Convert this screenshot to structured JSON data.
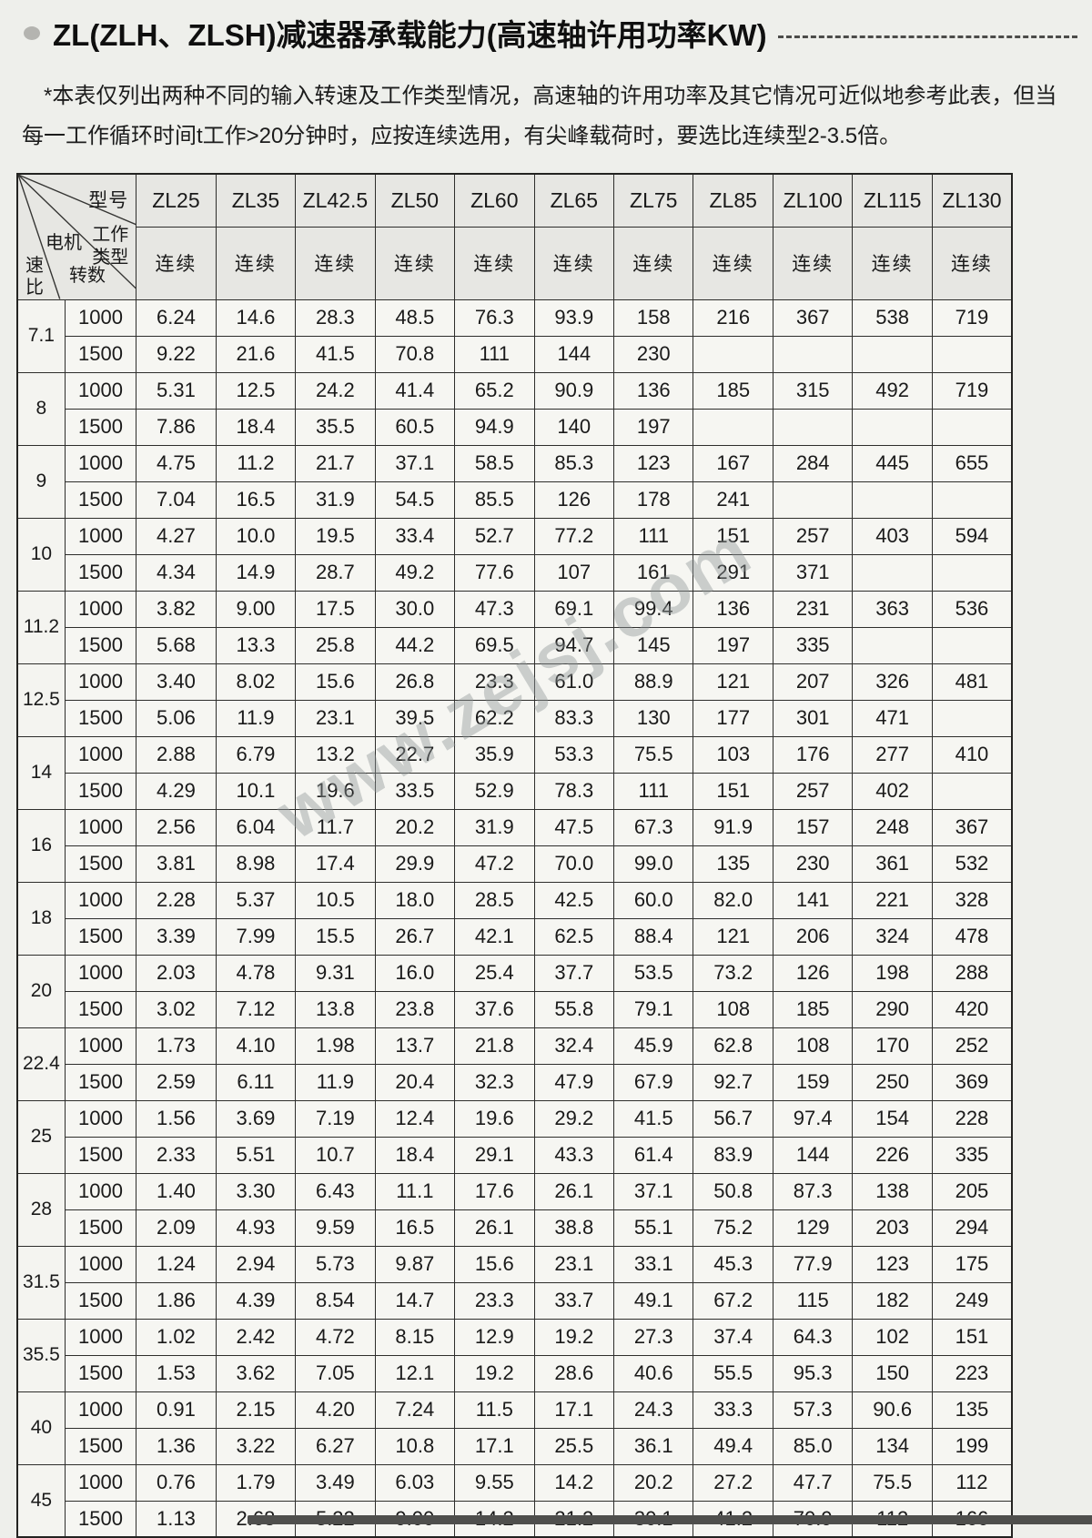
{
  "page": {
    "title": "ZL(ZLH、ZLSH)减速器承载能力(高速轴许用功率KW)",
    "note_line1": "*本表仅列出两种不同的输入转速及工作类型情况，高速轴的许用功率及其它情况可近似地参考此表，但当",
    "note_line2": "每一工作循环时间t工作>20分钟时，应按连续选用，有尖峰载荷时，要选比连续型2-3.5倍。",
    "watermark": "www.zejsj.com"
  },
  "table": {
    "corner": {
      "model_label": "型号",
      "work_type_label": "工作类型",
      "motor_label_1": "电机",
      "motor_label_2": "转数",
      "ratio_label": "速比"
    },
    "models": [
      "ZL25",
      "ZL35",
      "ZL42.5",
      "ZL50",
      "ZL60",
      "ZL65",
      "ZL75",
      "ZL85",
      "ZL100",
      "ZL115",
      "ZL130"
    ],
    "continuous_label": "连续",
    "row_groups": [
      {
        "ratio": "7.1",
        "rows": [
          {
            "rpm": "1000",
            "values": [
              "6.24",
              "14.6",
              "28.3",
              "48.5",
              "76.3",
              "93.9",
              "158",
              "216",
              "367",
              "538",
              "719"
            ]
          },
          {
            "rpm": "1500",
            "values": [
              "9.22",
              "21.6",
              "41.5",
              "70.8",
              "111",
              "144",
              "230",
              "",
              "",
              "",
              ""
            ]
          }
        ]
      },
      {
        "ratio": "8",
        "rows": [
          {
            "rpm": "1000",
            "values": [
              "5.31",
              "12.5",
              "24.2",
              "41.4",
              "65.2",
              "90.9",
              "136",
              "185",
              "315",
              "492",
              "719"
            ]
          },
          {
            "rpm": "1500",
            "values": [
              "7.86",
              "18.4",
              "35.5",
              "60.5",
              "94.9",
              "140",
              "197",
              "",
              "",
              "",
              ""
            ]
          }
        ]
      },
      {
        "ratio": "9",
        "rows": [
          {
            "rpm": "1000",
            "values": [
              "4.75",
              "11.2",
              "21.7",
              "37.1",
              "58.5",
              "85.3",
              "123",
              "167",
              "284",
              "445",
              "655"
            ]
          },
          {
            "rpm": "1500",
            "values": [
              "7.04",
              "16.5",
              "31.9",
              "54.5",
              "85.5",
              "126",
              "178",
              "241",
              "",
              "",
              ""
            ]
          }
        ]
      },
      {
        "ratio": "10",
        "rows": [
          {
            "rpm": "1000",
            "values": [
              "4.27",
              "10.0",
              "19.5",
              "33.4",
              "52.7",
              "77.2",
              "111",
              "151",
              "257",
              "403",
              "594"
            ]
          },
          {
            "rpm": "1500",
            "values": [
              "4.34",
              "14.9",
              "28.7",
              "49.2",
              "77.6",
              "107",
              "161",
              "291",
              "371",
              "",
              ""
            ]
          }
        ]
      },
      {
        "ratio": "11.2",
        "rows": [
          {
            "rpm": "1000",
            "values": [
              "3.82",
              "9.00",
              "17.5",
              "30.0",
              "47.3",
              "69.1",
              "99.4",
              "136",
              "231",
              "363",
              "536"
            ]
          },
          {
            "rpm": "1500",
            "values": [
              "5.68",
              "13.3",
              "25.8",
              "44.2",
              "69.5",
              "94.7",
              "145",
              "197",
              "335",
              "",
              ""
            ]
          }
        ]
      },
      {
        "ratio": "12.5",
        "rows": [
          {
            "rpm": "1000",
            "values": [
              "3.40",
              "8.02",
              "15.6",
              "26.8",
              "23.3",
              "61.0",
              "88.9",
              "121",
              "207",
              "326",
              "481"
            ]
          },
          {
            "rpm": "1500",
            "values": [
              "5.06",
              "11.9",
              "23.1",
              "39.5",
              "62.2",
              "83.3",
              "130",
              "177",
              "301",
              "471",
              ""
            ]
          }
        ]
      },
      {
        "ratio": "14",
        "rows": [
          {
            "rpm": "1000",
            "values": [
              "2.88",
              "6.79",
              "13.2",
              "22.7",
              "35.9",
              "53.3",
              "75.5",
              "103",
              "176",
              "277",
              "410"
            ]
          },
          {
            "rpm": "1500",
            "values": [
              "4.29",
              "10.1",
              "19.6",
              "33.5",
              "52.9",
              "78.3",
              "111",
              "151",
              "257",
              "402",
              ""
            ]
          }
        ]
      },
      {
        "ratio": "16",
        "rows": [
          {
            "rpm": "1000",
            "values": [
              "2.56",
              "6.04",
              "11.7",
              "20.2",
              "31.9",
              "47.5",
              "67.3",
              "91.9",
              "157",
              "248",
              "367"
            ]
          },
          {
            "rpm": "1500",
            "values": [
              "3.81",
              "8.98",
              "17.4",
              "29.9",
              "47.2",
              "70.0",
              "99.0",
              "135",
              "230",
              "361",
              "532"
            ]
          }
        ]
      },
      {
        "ratio": "18",
        "rows": [
          {
            "rpm": "1000",
            "values": [
              "2.28",
              "5.37",
              "10.5",
              "18.0",
              "28.5",
              "42.5",
              "60.0",
              "82.0",
              "141",
              "221",
              "328"
            ]
          },
          {
            "rpm": "1500",
            "values": [
              "3.39",
              "7.99",
              "15.5",
              "26.7",
              "42.1",
              "62.5",
              "88.4",
              "121",
              "206",
              "324",
              "478"
            ]
          }
        ]
      },
      {
        "ratio": "20",
        "rows": [
          {
            "rpm": "1000",
            "values": [
              "2.03",
              "4.78",
              "9.31",
              "16.0",
              "25.4",
              "37.7",
              "53.5",
              "73.2",
              "126",
              "198",
              "288"
            ]
          },
          {
            "rpm": "1500",
            "values": [
              "3.02",
              "7.12",
              "13.8",
              "23.8",
              "37.6",
              "55.8",
              "79.1",
              "108",
              "185",
              "290",
              "420"
            ]
          }
        ]
      },
      {
        "ratio": "22.4",
        "rows": [
          {
            "rpm": "1000",
            "values": [
              "1.73",
              "4.10",
              "1.98",
              "13.7",
              "21.8",
              "32.4",
              "45.9",
              "62.8",
              "108",
              "170",
              "252"
            ]
          },
          {
            "rpm": "1500",
            "values": [
              "2.59",
              "6.11",
              "11.9",
              "20.4",
              "32.3",
              "47.9",
              "67.9",
              "92.7",
              "159",
              "250",
              "369"
            ]
          }
        ]
      },
      {
        "ratio": "25",
        "rows": [
          {
            "rpm": "1000",
            "values": [
              "1.56",
              "3.69",
              "7.19",
              "12.4",
              "19.6",
              "29.2",
              "41.5",
              "56.7",
              "97.4",
              "154",
              "228"
            ]
          },
          {
            "rpm": "1500",
            "values": [
              "2.33",
              "5.51",
              "10.7",
              "18.4",
              "29.1",
              "43.3",
              "61.4",
              "83.9",
              "144",
              "226",
              "335"
            ]
          }
        ]
      },
      {
        "ratio": "28",
        "rows": [
          {
            "rpm": "1000",
            "values": [
              "1.40",
              "3.30",
              "6.43",
              "11.1",
              "17.6",
              "26.1",
              "37.1",
              "50.8",
              "87.3",
              "138",
              "205"
            ]
          },
          {
            "rpm": "1500",
            "values": [
              "2.09",
              "4.93",
              "9.59",
              "16.5",
              "26.1",
              "38.8",
              "55.1",
              "75.2",
              "129",
              "203",
              "294"
            ]
          }
        ]
      },
      {
        "ratio": "31.5",
        "rows": [
          {
            "rpm": "1000",
            "values": [
              "1.24",
              "2.94",
              "5.73",
              "9.87",
              "15.6",
              "23.1",
              "33.1",
              "45.3",
              "77.9",
              "123",
              "175"
            ]
          },
          {
            "rpm": "1500",
            "values": [
              "1.86",
              "4.39",
              "8.54",
              "14.7",
              "23.3",
              "33.7",
              "49.1",
              "67.2",
              "115",
              "182",
              "249"
            ]
          }
        ]
      },
      {
        "ratio": "35.5",
        "rows": [
          {
            "rpm": "1000",
            "values": [
              "1.02",
              "2.42",
              "4.72",
              "8.15",
              "12.9",
              "19.2",
              "27.3",
              "37.4",
              "64.3",
              "102",
              "151"
            ]
          },
          {
            "rpm": "1500",
            "values": [
              "1.53",
              "3.62",
              "7.05",
              "12.1",
              "19.2",
              "28.6",
              "40.6",
              "55.5",
              "95.3",
              "150",
              "223"
            ]
          }
        ]
      },
      {
        "ratio": "40",
        "rows": [
          {
            "rpm": "1000",
            "values": [
              "0.91",
              "2.15",
              "4.20",
              "7.24",
              "11.5",
              "17.1",
              "24.3",
              "33.3",
              "57.3",
              "90.6",
              "135"
            ]
          },
          {
            "rpm": "1500",
            "values": [
              "1.36",
              "3.22",
              "6.27",
              "10.8",
              "17.1",
              "25.5",
              "36.1",
              "49.4",
              "85.0",
              "134",
              "199"
            ]
          }
        ]
      },
      {
        "ratio": "45",
        "rows": [
          {
            "rpm": "1000",
            "values": [
              "0.76",
              "1.79",
              "3.49",
              "6.03",
              "9.55",
              "14.2",
              "20.2",
              "27.2",
              "47.7",
              "75.5",
              "112"
            ]
          },
          {
            "rpm": "1500",
            "values": [
              "1.13",
              "2.68",
              "5.22",
              "9.00",
              "14.2",
              "21.2",
              "30.1",
              "41.2",
              "70.9",
              "112",
              "166"
            ]
          }
        ]
      }
    ]
  }
}
